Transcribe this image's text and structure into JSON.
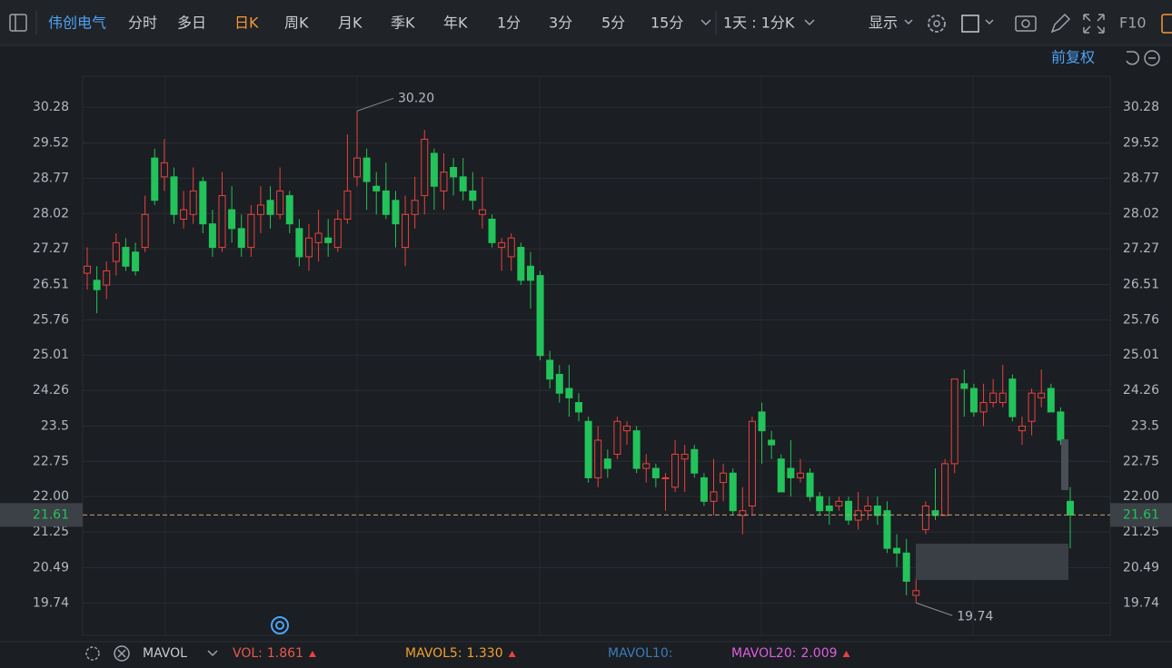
{
  "toolbar": {
    "stock": "伟创电气",
    "tabs": [
      "分时",
      "多日",
      "日K",
      "周K",
      "月K",
      "季K",
      "年K",
      "1分",
      "3分",
      "5分",
      "15分"
    ],
    "period": "1天 : 1分K",
    "display": "显示",
    "f10": "F10",
    "adjust": "前复权"
  },
  "chart_data": {
    "type": "candlestick",
    "up_color": "#e8423f",
    "down_color": "#22c35a",
    "open": [
      26.75,
      26.6,
      26.5,
      27.0,
      27.3,
      27.2,
      27.3,
      29.2,
      28.8,
      28.8,
      27.9,
      28.0,
      28.7,
      27.8,
      27.3,
      28.1,
      27.7,
      27.3,
      28.0,
      28.3,
      28.0,
      28.4,
      27.7,
      27.1,
      27.4,
      27.5,
      27.3,
      27.9,
      28.8,
      29.2,
      28.6,
      28.5,
      28.3,
      27.3,
      28.0,
      28.4,
      29.3,
      28.5,
      29.0,
      28.8,
      28.5,
      28.0,
      27.9,
      27.3,
      27.1,
      27.3,
      26.9,
      26.7,
      24.9,
      24.6,
      24.3,
      24.0,
      23.6,
      22.4,
      22.8,
      22.9,
      23.4,
      23.4,
      22.6,
      22.6,
      22.4,
      22.2,
      22.8,
      23.0,
      22.4,
      21.9,
      22.3,
      22.5,
      21.6,
      21.8,
      23.8,
      23.2,
      22.8,
      22.6,
      22.4,
      22.5,
      22.0,
      21.8,
      21.8,
      21.9,
      21.5,
      21.7,
      21.8,
      21.7,
      20.9,
      20.8,
      19.9,
      21.3,
      21.7,
      21.6,
      22.7,
      24.4,
      24.3,
      23.8,
      24.0,
      24.0,
      24.5,
      23.4,
      23.6,
      24.1,
      24.3,
      23.8,
      21.9
    ],
    "high": [
      27.3,
      26.9,
      27.0,
      27.6,
      27.5,
      27.4,
      28.4,
      29.4,
      29.6,
      29.0,
      28.5,
      29.0,
      28.8,
      28.1,
      28.9,
      28.6,
      28.0,
      28.2,
      28.6,
      28.6,
      29.0,
      28.5,
      27.9,
      27.8,
      28.1,
      27.9,
      28.1,
      29.7,
      30.2,
      29.4,
      28.9,
      29.1,
      28.5,
      28.4,
      28.8,
      29.8,
      29.4,
      29.3,
      29.2,
      29.2,
      28.9,
      28.8,
      28.0,
      27.5,
      27.6,
      27.4,
      27.2,
      26.8,
      25.1,
      24.8,
      24.8,
      24.2,
      23.7,
      23.5,
      23.0,
      23.7,
      23.6,
      23.5,
      22.9,
      22.7,
      22.5,
      23.2,
      23.1,
      23.1,
      22.5,
      22.8,
      22.7,
      22.6,
      22.2,
      23.7,
      24.0,
      23.4,
      22.9,
      23.2,
      22.8,
      22.6,
      22.1,
      22.0,
      22.0,
      22.0,
      22.1,
      22.0,
      22.0,
      21.9,
      21.2,
      21.1,
      20.3,
      21.9,
      22.6,
      22.8,
      24.5,
      24.7,
      24.4,
      24.4,
      24.5,
      24.8,
      24.6,
      23.7,
      24.3,
      24.7,
      24.4,
      23.9,
      22.2
    ],
    "low": [
      26.4,
      25.9,
      26.2,
      26.7,
      26.8,
      26.7,
      27.2,
      28.2,
      28.5,
      27.8,
      27.7,
      27.8,
      27.6,
      27.1,
      27.2,
      27.4,
      27.1,
      27.1,
      27.6,
      27.7,
      27.9,
      27.6,
      26.9,
      26.8,
      27.0,
      27.1,
      27.2,
      27.8,
      28.6,
      28.1,
      28.0,
      27.9,
      27.3,
      26.9,
      27.7,
      28.0,
      28.1,
      28.1,
      28.4,
      28.3,
      28.1,
      27.7,
      27.3,
      26.8,
      26.8,
      26.5,
      26.0,
      24.9,
      24.3,
      24.0,
      23.7,
      23.6,
      22.3,
      22.2,
      22.4,
      22.8,
      23.1,
      22.5,
      22.3,
      22.2,
      21.7,
      22.1,
      22.1,
      22.4,
      21.8,
      21.6,
      21.9,
      21.6,
      21.2,
      21.6,
      22.7,
      22.8,
      22.1,
      22.0,
      22.3,
      21.9,
      21.6,
      21.4,
      21.7,
      21.4,
      21.3,
      21.5,
      21.4,
      20.8,
      20.5,
      19.9,
      19.74,
      21.2,
      21.5,
      21.6,
      22.5,
      23.7,
      23.7,
      23.5,
      23.9,
      23.9,
      23.6,
      23.1,
      23.3,
      23.9,
      23.8,
      23.1,
      20.9
    ],
    "close": [
      26.9,
      26.4,
      26.8,
      27.4,
      26.9,
      26.8,
      28.0,
      28.3,
      29.1,
      28.0,
      28.1,
      28.5,
      27.8,
      27.3,
      28.4,
      27.7,
      27.3,
      28.0,
      28.2,
      28.0,
      28.5,
      27.8,
      27.1,
      27.5,
      27.6,
      27.4,
      27.9,
      28.5,
      29.2,
      28.7,
      28.5,
      28.0,
      27.8,
      28.0,
      28.3,
      29.6,
      28.6,
      28.9,
      28.8,
      28.5,
      28.3,
      28.1,
      27.4,
      27.4,
      27.5,
      26.6,
      26.6,
      25.0,
      24.5,
      24.2,
      24.1,
      23.8,
      22.4,
      23.2,
      22.6,
      23.6,
      23.5,
      22.6,
      22.7,
      22.4,
      22.4,
      22.9,
      22.9,
      22.5,
      21.9,
      22.1,
      22.5,
      21.7,
      21.7,
      23.6,
      23.4,
      23.1,
      22.1,
      22.4,
      22.5,
      22.0,
      21.7,
      21.7,
      21.9,
      21.5,
      21.7,
      21.8,
      21.6,
      20.9,
      20.8,
      20.2,
      20.0,
      21.8,
      21.6,
      22.7,
      24.5,
      24.3,
      23.8,
      24.0,
      24.2,
      24.2,
      23.7,
      23.5,
      24.2,
      24.2,
      23.8,
      23.2,
      21.61
    ],
    "ylim": [
      19.05,
      30.92
    ],
    "yticks": [
      30.28,
      29.52,
      28.77,
      28.02,
      27.27,
      26.51,
      25.76,
      25.01,
      24.26,
      23.5,
      22.75,
      {
        "value": 22,
        "label": "22.00"
      },
      21.25,
      20.49,
      19.74
    ],
    "grid": true,
    "last_price": 21.61,
    "max_label": {
      "value": 30.2,
      "label": "30.20"
    },
    "min_label": 19.74
  },
  "indicator": {
    "name": "MAVOL",
    "items": [
      {
        "name": "VOL:",
        "value": "1.861",
        "color": "#e8584a"
      },
      {
        "name": "MAVOL5:",
        "value": "1.330",
        "color": "#f0a030"
      },
      {
        "name": "MAVOL10:",
        "color": "#3b7cb8"
      },
      {
        "name": "MAVOL20:",
        "value": "2.009",
        "color": "#de5ee0"
      }
    ]
  }
}
